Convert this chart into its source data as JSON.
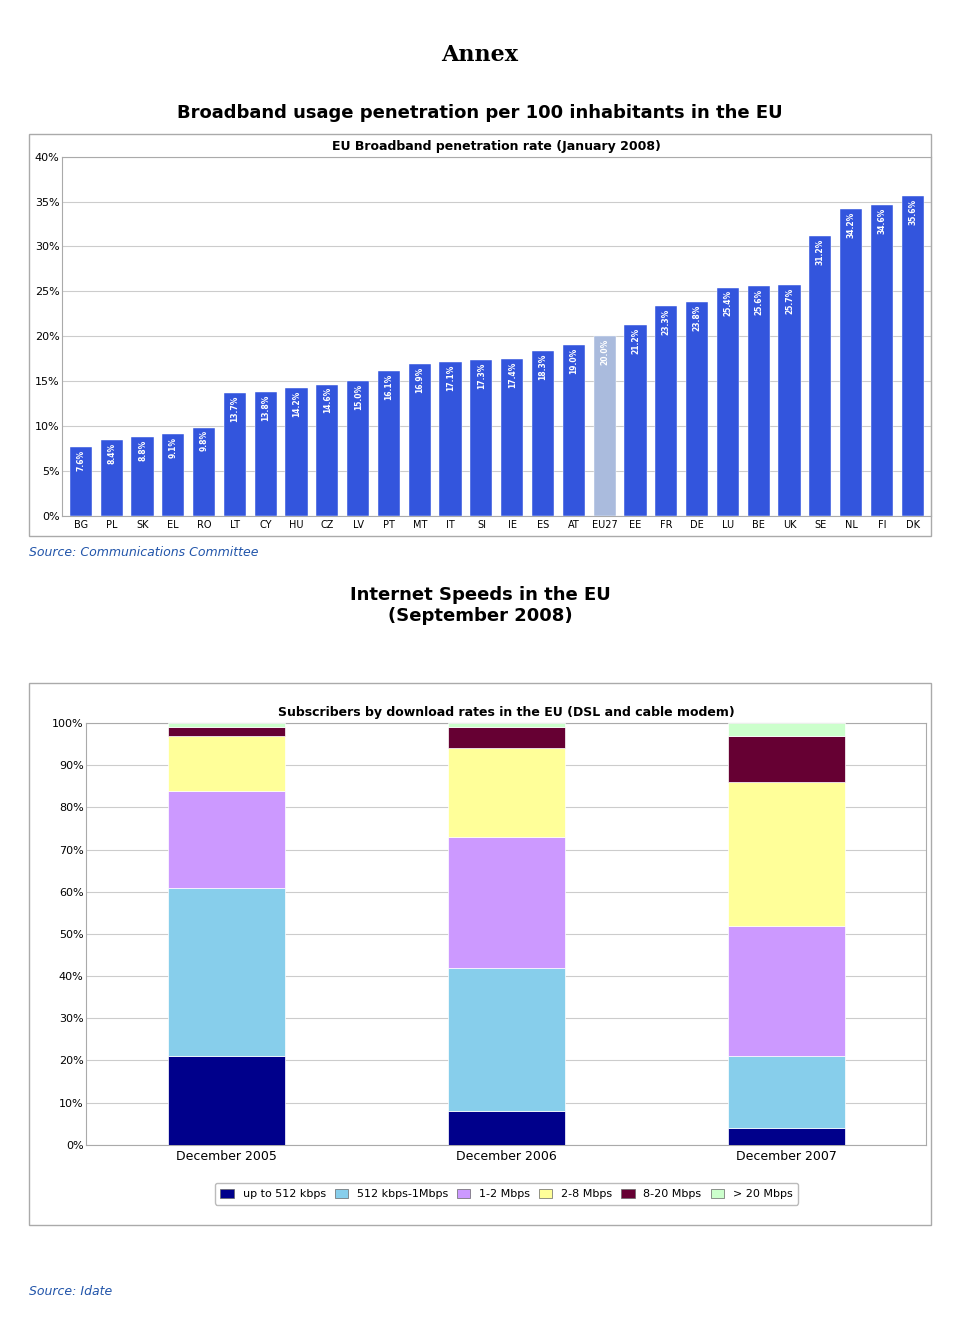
{
  "title_main": "Annex",
  "chart1_title_above": "Broadband usage penetration per 100 inhabitants in the EU",
  "chart1_inner_title": "EU Broadband penetration rate (January 2008)",
  "chart1_source": "Source: Communications Committee",
  "chart1_categories": [
    "BG",
    "PL",
    "SK",
    "EL",
    "RO",
    "LT",
    "CY",
    "HU",
    "CZ",
    "LV",
    "PT",
    "MT",
    "IT",
    "SI",
    "IE",
    "ES",
    "AT",
    "EU27",
    "EE",
    "FR",
    "DE",
    "LU",
    "BE",
    "UK",
    "SE",
    "NL",
    "FI",
    "DK"
  ],
  "chart1_values": [
    7.6,
    8.4,
    8.8,
    9.1,
    9.8,
    13.7,
    13.8,
    14.2,
    14.6,
    15.0,
    16.1,
    16.9,
    17.1,
    17.3,
    17.4,
    18.3,
    19.0,
    20.0,
    21.2,
    23.3,
    23.8,
    25.4,
    25.6,
    25.7,
    31.2,
    34.2,
    34.6,
    35.6
  ],
  "chart1_bar_color": "#3355dd",
  "chart1_eu27_color": "#aabbdd",
  "chart1_ylim": [
    0,
    40
  ],
  "chart1_yticks": [
    0,
    5,
    10,
    15,
    20,
    25,
    30,
    35,
    40
  ],
  "chart1_ytick_labels": [
    "0%",
    "5%",
    "10%",
    "15%",
    "20%",
    "25%",
    "30%",
    "35%",
    "40%"
  ],
  "chart2_title_above": "Internet Speeds in the EU\n(September 2008)",
  "chart2_inner_title": "Subscribers by download rates in the EU (DSL and cable modem)",
  "chart2_source": "Source: Idate",
  "chart2_categories": [
    "December 2005",
    "December 2006",
    "December 2007"
  ],
  "chart2_data": {
    "up_to_512": [
      21,
      8,
      4
    ],
    "512_to_1M": [
      40,
      34,
      17
    ],
    "1_to_2M": [
      23,
      31,
      31
    ],
    "2_to_8M": [
      13,
      21,
      34
    ],
    "8_to_20M": [
      2,
      5,
      11
    ],
    "over_20M": [
      1,
      1,
      3
    ]
  },
  "chart2_colors": {
    "up_to_512": "#00008B",
    "512_to_1M": "#87CEEB",
    "1_to_2M": "#CC99FF",
    "2_to_8M": "#FFFF99",
    "8_to_20M": "#660033",
    "over_20M": "#CCFFCC"
  },
  "chart2_legend_labels": [
    "up to 512 kbps",
    "512 kbps-1Mbps",
    "1-2 Mbps",
    "2-8 Mbps",
    "8-20 Mbps",
    "> 20 Mbps"
  ],
  "chart2_yticks": [
    0,
    10,
    20,
    30,
    40,
    50,
    60,
    70,
    80,
    90,
    100
  ],
  "chart2_ytick_labels": [
    "0%",
    "10%",
    "20%",
    "30%",
    "40%",
    "50%",
    "60%",
    "70%",
    "80%",
    "90%",
    "100%"
  ],
  "background_color": "#ffffff",
  "grid_color": "#cccccc"
}
